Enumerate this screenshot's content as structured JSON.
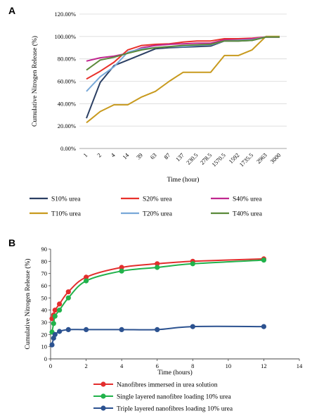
{
  "chart_data": [
    {
      "panel_label": "A",
      "type": "line",
      "x_categories": [
        "1",
        "2",
        "4",
        "14",
        "39",
        "63",
        "87",
        "137",
        "230.5",
        "278.5",
        "1570.5",
        "1592",
        "1735.5",
        "2963",
        "3000"
      ],
      "xlabel": "Time (hour)",
      "ylabel": "Cumulative Nitrogen Release (%)",
      "ylim": [
        0,
        120
      ],
      "y_ticks": [
        "0.00%",
        "20.00%",
        "40.00%",
        "60.00%",
        "80.00%",
        "100.00%",
        "120.00%"
      ],
      "grid": true,
      "legend_position": "bottom",
      "series": [
        {
          "name": "S10% urea",
          "color": "#2b3f63",
          "values": [
            27,
            59,
            74,
            79,
            84,
            89,
            90,
            90.5,
            91,
            91.5,
            96,
            96,
            96.5,
            99.5,
            99.5
          ]
        },
        {
          "name": "S20% urea",
          "color": "#e8312b",
          "values": [
            62,
            69,
            77,
            88,
            92,
            93,
            93.5,
            95,
            96,
            96,
            98,
            98,
            98.5,
            99.5,
            99.5
          ]
        },
        {
          "name": "S40% urea",
          "color": "#c0288f",
          "values": [
            78,
            81,
            82.5,
            85,
            90,
            92,
            93,
            93.5,
            94,
            94,
            97,
            97,
            98,
            99.5,
            99.5
          ]
        },
        {
          "name": "T10% urea",
          "color": "#c89a1e",
          "values": [
            23,
            33,
            39,
            39,
            46,
            51,
            60,
            68,
            68,
            68,
            83,
            83,
            88,
            100,
            100
          ]
        },
        {
          "name": "T20% urea",
          "color": "#78a8d8",
          "values": [
            51,
            64,
            73,
            86,
            89,
            90,
            91,
            91,
            92,
            92.5,
            96,
            96.5,
            97,
            99.5,
            99.5
          ]
        },
        {
          "name": "T40% urea",
          "color": "#5a8a3a",
          "values": [
            70,
            79,
            81.5,
            85,
            88,
            90,
            91,
            92,
            92.5,
            93,
            96,
            96,
            96.5,
            99.5,
            99.5
          ]
        }
      ]
    },
    {
      "panel_label": "B",
      "type": "line",
      "xlabel": "Time (hours)",
      "ylabel": "Cumulative Nitrogen Release (%)",
      "xlim": [
        0,
        14
      ],
      "ylim": [
        0,
        90
      ],
      "x_ticks": [
        "0",
        "2",
        "4",
        "6",
        "8",
        "10",
        "12",
        "14"
      ],
      "y_ticks": [
        "0",
        "10",
        "20",
        "30",
        "40",
        "50",
        "60",
        "70",
        "80",
        "90"
      ],
      "grid": false,
      "legend_position": "bottom",
      "series": [
        {
          "name": "Nanofibres immersed in urea solution",
          "color": "#e32d2d",
          "x": [
            0.08,
            0.17,
            0.25,
            0.5,
            1,
            2,
            4,
            6,
            8,
            12
          ],
          "y": [
            33,
            36,
            40,
            45,
            55,
            67,
            75,
            78,
            80,
            82
          ]
        },
        {
          "name": "Single layered nanofibre loading 10% urea",
          "color": "#21b24b",
          "x": [
            0.08,
            0.17,
            0.25,
            0.5,
            1,
            2,
            4,
            6,
            8,
            12
          ],
          "y": [
            22,
            29,
            35,
            40,
            50,
            64,
            72,
            75,
            78,
            81
          ]
        },
        {
          "name": "Triple layered nanofibres loading 10% urea",
          "color": "#2c5290",
          "x": [
            0.08,
            0.17,
            0.25,
            0.5,
            1,
            2,
            4,
            6,
            8,
            12
          ],
          "y": [
            11.5,
            17,
            20,
            22.5,
            24,
            24,
            24,
            24,
            26.5,
            26.5
          ]
        }
      ]
    }
  ]
}
